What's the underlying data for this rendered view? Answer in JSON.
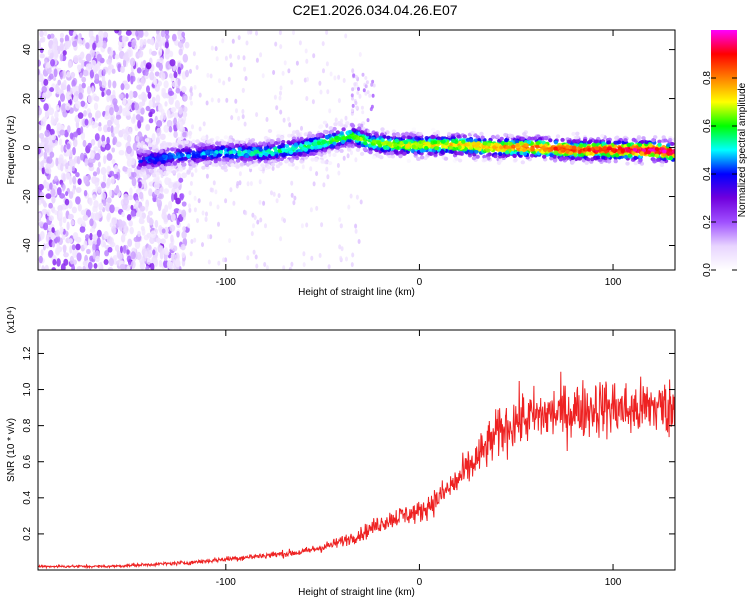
{
  "title": "C2E1.2026.034.04.26.E07",
  "chart_data": [
    {
      "type": "heatmap",
      "title": "",
      "xlabel": "Height of straight line (km)",
      "ylabel": "Frequency (Hz)",
      "xlim": [
        -197,
        132
      ],
      "ylim": [
        -50,
        48
      ],
      "xticks": [
        -100,
        0,
        100
      ],
      "yticks": [
        -40,
        -20,
        0,
        20,
        40
      ],
      "grid": false,
      "colorbar": {
        "label": "Normalized spectral amplitude",
        "range": [
          0,
          1
        ],
        "ticks": [
          0.0,
          0.2,
          0.4,
          0.6,
          0.8
        ],
        "colormap": [
          "#ffffff",
          "#e8d4ff",
          "#a050ff",
          "#7000dd",
          "#0000ff",
          "#00ffff",
          "#00ff00",
          "#ffff00",
          "#ff8000",
          "#ff0000",
          "#ff00ff"
        ]
      },
      "ridge": {
        "description_points_x": [
          -140,
          -120,
          -100,
          -80,
          -60,
          -45,
          -35,
          -25,
          -10,
          0,
          20,
          40,
          60,
          80,
          100,
          120,
          132
        ],
        "description_points_y": [
          -5,
          -3,
          -2,
          -2,
          0,
          3,
          5,
          2,
          1,
          1,
          1,
          0,
          0,
          -1,
          -1,
          -1,
          -2
        ]
      }
    },
    {
      "type": "line",
      "title": "",
      "xlabel": "Height of straight line (km)",
      "ylabel": "SNR (10 * v/v)",
      "yscale_label": "(x10⁴)",
      "xlim": [
        -197,
        132
      ],
      "ylim": [
        0,
        1.33
      ],
      "xticks": [
        -100,
        0,
        100
      ],
      "yticks": [
        0.2,
        0.4,
        0.6,
        0.8,
        1.0,
        1.2
      ],
      "grid": false,
      "series": [
        {
          "color": "#ee2222",
          "x": [
            -197,
            -180,
            -160,
            -140,
            -120,
            -100,
            -80,
            -60,
            -45,
            -30,
            -20,
            -10,
            0,
            10,
            20,
            30,
            40,
            50,
            60,
            70,
            80,
            90,
            100,
            110,
            120,
            132
          ],
          "y": [
            0.02,
            0.02,
            0.02,
            0.03,
            0.04,
            0.06,
            0.08,
            0.1,
            0.14,
            0.2,
            0.26,
            0.3,
            0.32,
            0.4,
            0.5,
            0.62,
            0.75,
            0.83,
            0.85,
            0.87,
            0.88,
            0.9,
            0.9,
            0.88,
            0.91,
            0.89
          ]
        }
      ]
    }
  ]
}
